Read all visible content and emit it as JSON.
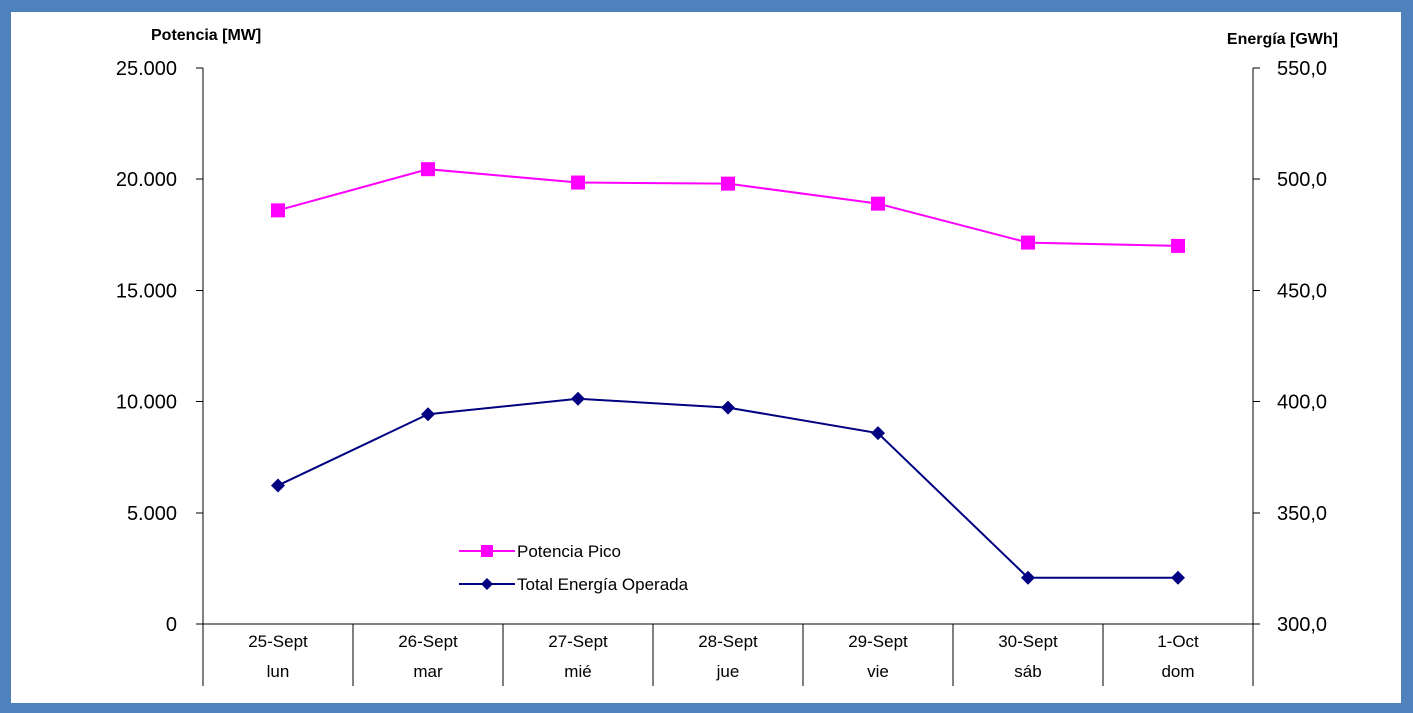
{
  "chart_data": {
    "type": "line",
    "y_left_label": "Potencia [MW]",
    "y_right_label": "Energía [GWh]",
    "y_left_range": [
      0,
      25000
    ],
    "y_right_range": [
      300,
      550
    ],
    "y_left_ticks": [
      "0",
      "5.000",
      "10.000",
      "15.000",
      "20.000",
      "25.000"
    ],
    "y_right_ticks": [
      "300,0",
      "350,0",
      "400,0",
      "450,0",
      "500,0",
      "550,0"
    ],
    "categories": [
      {
        "date": "25-Sept",
        "day": "lun"
      },
      {
        "date": "26-Sept",
        "day": "mar"
      },
      {
        "date": "27-Sept",
        "day": "mié"
      },
      {
        "date": "28-Sept",
        "day": "jue"
      },
      {
        "date": "29-Sept",
        "day": "vie"
      },
      {
        "date": "30-Sept",
        "day": "sáb"
      },
      {
        "date": "1-Oct",
        "day": "dom"
      }
    ],
    "series": [
      {
        "name": "Potencia Pico",
        "axis": "left",
        "unit": "MW",
        "color": "#ff00ff",
        "marker": "square",
        "values": [
          18600,
          20450,
          19850,
          19800,
          18900,
          17150,
          17000
        ]
      },
      {
        "name": "Total Energía Operada",
        "axis": "right",
        "unit": "GWh",
        "color": "#000080",
        "marker": "diamond",
        "values": [
          362.3,
          394.3,
          401.3,
          397.3,
          385.8,
          320.8,
          320.8
        ]
      }
    ],
    "legend_position": "bottom-left",
    "grid": false
  }
}
